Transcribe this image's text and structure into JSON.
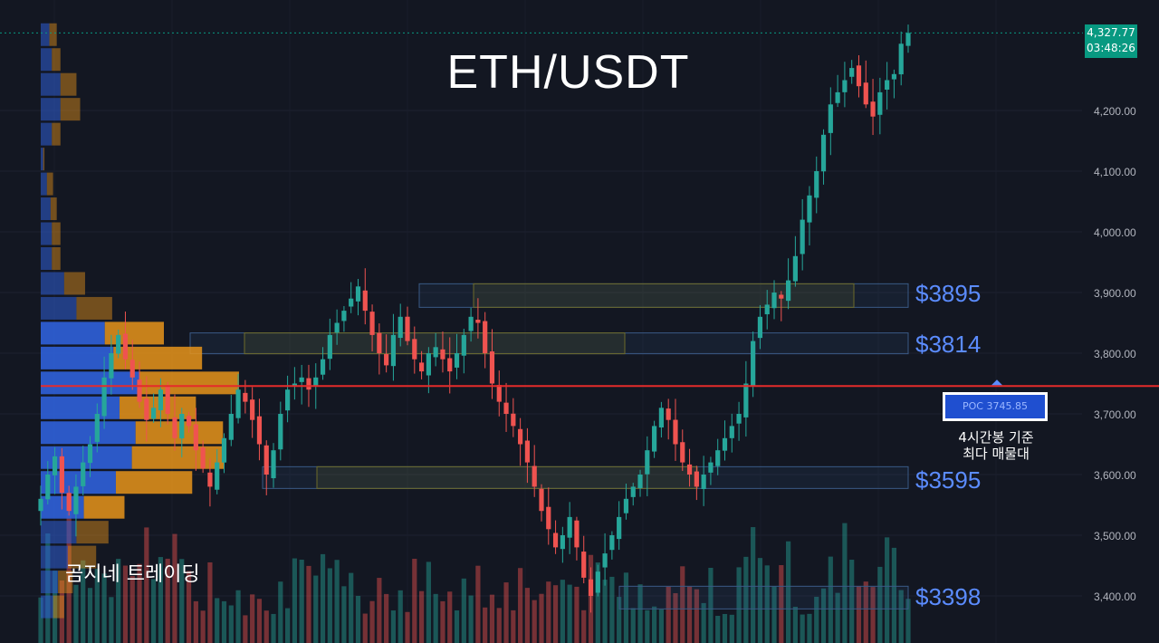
{
  "title": "ETH/USDT",
  "brand": "곰지네 트레이딩",
  "current_price": {
    "price": "4,327.77",
    "countdown": "03:48:26"
  },
  "poc": {
    "label": "POC 3745.85",
    "value": 3745.85,
    "note_line1": "4시간봉 기준",
    "note_line2": "최다 매물대"
  },
  "levels": [
    {
      "label": "$3895",
      "value": 3895
    },
    {
      "label": "$3814",
      "value": 3814
    },
    {
      "label": "$3595",
      "value": 3595
    },
    {
      "label": "$3398",
      "value": 3398
    }
  ],
  "colors": {
    "background": "#131722",
    "up": "#26a69a",
    "down": "#ef5350",
    "poc_line": "#e52b2b",
    "level_label": "#5b8cff",
    "vp_up": "#2f5fd6",
    "vp_down": "#e8941a",
    "price_tag": "#089981"
  },
  "chart_data": {
    "type": "candlestick",
    "pair": "ETH/USDT",
    "timeframe": "4H",
    "y_ticks": [
      "4,200.00",
      "4,100.00",
      "4,000.00",
      "3,900.00",
      "3,800.00",
      "3,700.00",
      "3,600.00",
      "3,500.00",
      "3,400.00"
    ],
    "y_range": [
      3330,
      4360
    ],
    "close_path": [
      3560,
      3600,
      3630,
      3570,
      3540,
      3580,
      3620,
      3650,
      3700,
      3760,
      3800,
      3830,
      3790,
      3760,
      3720,
      3690,
      3710,
      3740,
      3700,
      3660,
      3700,
      3680,
      3640,
      3610,
      3580,
      3620,
      3660,
      3700,
      3740,
      3720,
      3690,
      3650,
      3600,
      3640,
      3700,
      3740,
      3750,
      3760,
      3740,
      3760,
      3790,
      3830,
      3850,
      3870,
      3890,
      3910,
      3870,
      3830,
      3800,
      3780,
      3830,
      3860,
      3820,
      3790,
      3770,
      3800,
      3810,
      3790,
      3770,
      3800,
      3830,
      3860,
      3850,
      3800,
      3750,
      3720,
      3700,
      3680,
      3650,
      3620,
      3580,
      3540,
      3510,
      3480,
      3500,
      3530,
      3480,
      3430,
      3400,
      3440,
      3470,
      3500,
      3530,
      3560,
      3580,
      3600,
      3640,
      3680,
      3710,
      3690,
      3650,
      3620,
      3600,
      3580,
      3600,
      3620,
      3640,
      3660,
      3680,
      3700,
      3750,
      3820,
      3860,
      3880,
      3900,
      3890,
      3920,
      3960,
      4020,
      4060,
      4100,
      4160,
      4210,
      4230,
      4250,
      4270,
      4240,
      4210,
      4190,
      4230,
      4250,
      4260,
      4310,
      4327.77
    ],
    "volume_profile": [
      {
        "price": 4325,
        "buy": 14,
        "sell": 12
      },
      {
        "price": 4284,
        "buy": 18,
        "sell": 14
      },
      {
        "price": 4243,
        "buy": 32,
        "sell": 26
      },
      {
        "price": 4202,
        "buy": 32,
        "sell": 32
      },
      {
        "price": 4161,
        "buy": 18,
        "sell": 14
      },
      {
        "price": 4120,
        "buy": 4,
        "sell": 2
      },
      {
        "price": 4079,
        "buy": 10,
        "sell": 10
      },
      {
        "price": 4038,
        "buy": 16,
        "sell": 10
      },
      {
        "price": 3997,
        "buy": 18,
        "sell": 14
      },
      {
        "price": 3956,
        "buy": 18,
        "sell": 14
      },
      {
        "price": 3915,
        "buy": 38,
        "sell": 34
      },
      {
        "price": 3874,
        "buy": 58,
        "sell": 58
      },
      {
        "price": 3833,
        "buy": 104,
        "sell": 96
      },
      {
        "price": 3792,
        "buy": 118,
        "sell": 144
      },
      {
        "price": 3751,
        "buy": 160,
        "sell": 162
      },
      {
        "price": 3710,
        "buy": 128,
        "sell": 124
      },
      {
        "price": 3669,
        "buy": 154,
        "sell": 142
      },
      {
        "price": 3628,
        "buy": 148,
        "sell": 150
      },
      {
        "price": 3587,
        "buy": 122,
        "sell": 124
      },
      {
        "price": 3546,
        "buy": 70,
        "sell": 66
      },
      {
        "price": 3505,
        "buy": 58,
        "sell": 52
      },
      {
        "price": 3464,
        "buy": 44,
        "sell": 46
      },
      {
        "price": 3423,
        "buy": 28,
        "sell": 24
      },
      {
        "price": 3382,
        "buy": 20,
        "sell": 18
      }
    ]
  }
}
